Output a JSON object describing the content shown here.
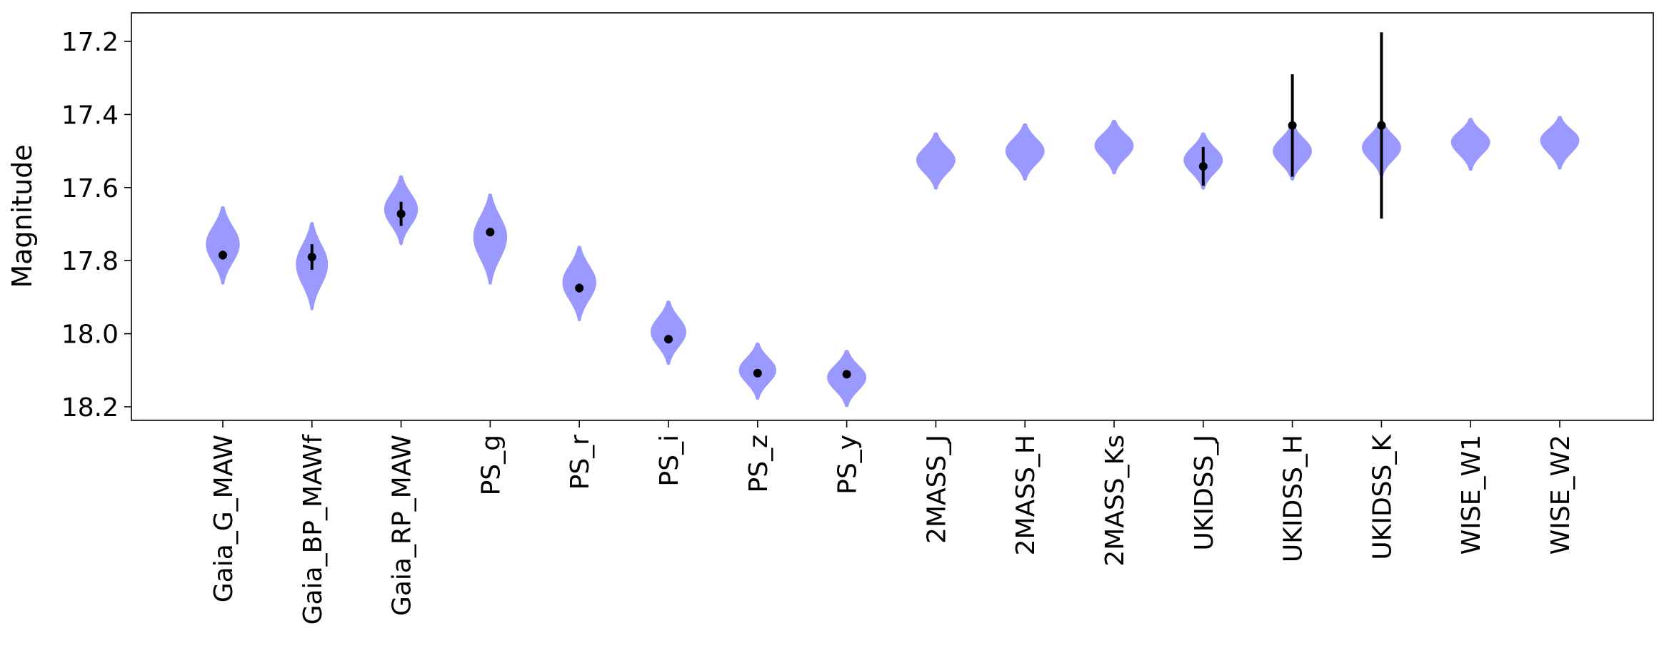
{
  "chart_data": {
    "type": "violin",
    "ylabel": "Magnitude",
    "xlabel": "",
    "title": "",
    "y_inverted": true,
    "ylim": [
      18.25,
      17.12
    ],
    "yticks": [
      17.2,
      17.4,
      17.6,
      17.8,
      18.0,
      18.2
    ],
    "ytick_labels": [
      "17.2",
      "17.4",
      "17.6",
      "17.8",
      "18.0",
      "18.2"
    ],
    "grid": false,
    "violin_color": "#9999ff",
    "point_color": "#000000",
    "categories": [
      "Gaia_G_MAW",
      "Gaia_BP_MAWf",
      "Gaia_RP_MAW",
      "PS_g",
      "PS_r",
      "PS_i",
      "PS_z",
      "PS_y",
      "2MASS_J",
      "2MASS_H",
      "2MASS_Ks",
      "UKIDSS_J",
      "UKIDSS_H",
      "UKIDSS_K",
      "WISE_W1",
      "WISE_W2"
    ],
    "violins": [
      {
        "min": 17.657,
        "center": 17.755,
        "max": 17.86,
        "width": 0.38
      },
      {
        "min": 17.7,
        "center": 17.81,
        "max": 17.93,
        "width": 0.36
      },
      {
        "min": 17.572,
        "center": 17.66,
        "max": 17.752,
        "width": 0.38
      },
      {
        "min": 17.622,
        "center": 17.735,
        "max": 17.86,
        "width": 0.38
      },
      {
        "min": 17.765,
        "center": 17.86,
        "max": 17.96,
        "width": 0.38
      },
      {
        "min": 17.915,
        "center": 17.995,
        "max": 18.08,
        "width": 0.4
      },
      {
        "min": 18.03,
        "center": 18.1,
        "max": 18.175,
        "width": 0.42
      },
      {
        "min": 18.05,
        "center": 18.12,
        "max": 18.195,
        "width": 0.44
      },
      {
        "min": 17.455,
        "center": 17.525,
        "max": 17.6,
        "width": 0.44
      },
      {
        "min": 17.43,
        "center": 17.5,
        "max": 17.575,
        "width": 0.44
      },
      {
        "min": 17.42,
        "center": 17.485,
        "max": 17.558,
        "width": 0.44
      },
      {
        "min": 17.455,
        "center": 17.525,
        "max": 17.6,
        "width": 0.44
      },
      {
        "min": 17.43,
        "center": 17.5,
        "max": 17.575,
        "width": 0.44
      },
      {
        "min": 17.42,
        "center": 17.49,
        "max": 17.565,
        "width": 0.44
      },
      {
        "min": 17.415,
        "center": 17.475,
        "max": 17.548,
        "width": 0.44
      },
      {
        "min": 17.41,
        "center": 17.47,
        "max": 17.545,
        "width": 0.44
      }
    ],
    "points": [
      {
        "category": "Gaia_G_MAW",
        "y": 17.785,
        "err": 0.012
      },
      {
        "category": "Gaia_BP_MAWf",
        "y": 17.79,
        "err": 0.035
      },
      {
        "category": "Gaia_RP_MAW",
        "y": 17.672,
        "err": 0.033
      },
      {
        "category": "PS_g",
        "y": 17.722,
        "err": 0.01
      },
      {
        "category": "PS_r",
        "y": 17.875,
        "err": 0.012
      },
      {
        "category": "PS_i",
        "y": 18.015,
        "err": 0.01
      },
      {
        "category": "PS_z",
        "y": 18.108,
        "err": 0.01
      },
      {
        "category": "PS_y",
        "y": 18.111,
        "err": 0.01
      },
      {
        "category": "UKIDSS_J",
        "y": 17.542,
        "err": 0.053
      },
      {
        "category": "UKIDSS_H",
        "y": 17.43,
        "err": 0.14
      },
      {
        "category": "UKIDSS_K",
        "y": 17.43,
        "err": 0.255
      }
    ]
  }
}
